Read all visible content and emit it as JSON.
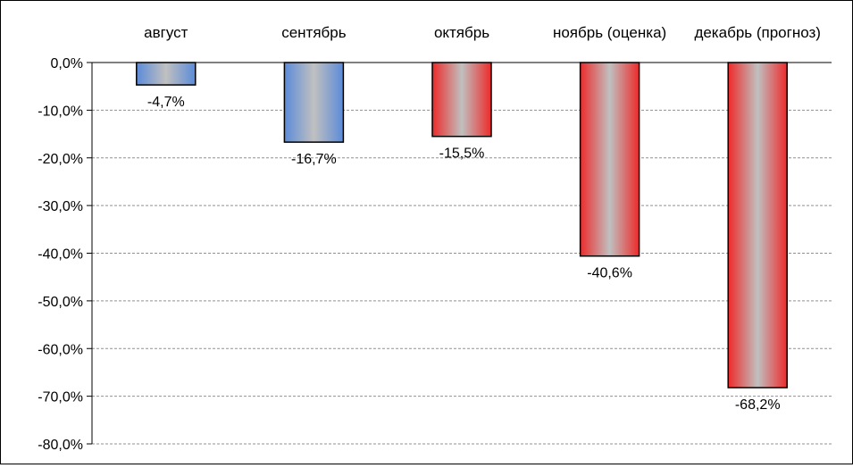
{
  "chart_data": {
    "type": "bar",
    "categories": [
      "август",
      "сентябрь",
      "октябрь",
      "ноябрь (оценка)",
      "декабрь (прогноз)"
    ],
    "values": [
      -4.7,
      -16.7,
      -15.5,
      -40.6,
      -68.2
    ],
    "data_labels": [
      "-4,7%",
      "-16,7%",
      "-15,5%",
      "-40,6%",
      "-68,2%"
    ],
    "bar_colors": [
      "#5b8bd9",
      "#5b8bd9",
      "#ee2a2a",
      "#ee2a2a",
      "#ee2a2a"
    ],
    "bar_center_color": "#c0c0c0",
    "ylim": [
      -80,
      0
    ],
    "yticks": [
      0,
      -10,
      -20,
      -30,
      -40,
      -50,
      -60,
      -70,
      -80
    ],
    "ytick_labels": [
      "0,0%",
      "-10,0%",
      "-20,0%",
      "-30,0%",
      "-40,0%",
      "-50,0%",
      "-60,0%",
      "-70,0%",
      "-80,0%"
    ],
    "grid": true,
    "category_axis_position": "top",
    "legend": "none",
    "title": "",
    "xlabel": "",
    "ylabel": ""
  }
}
